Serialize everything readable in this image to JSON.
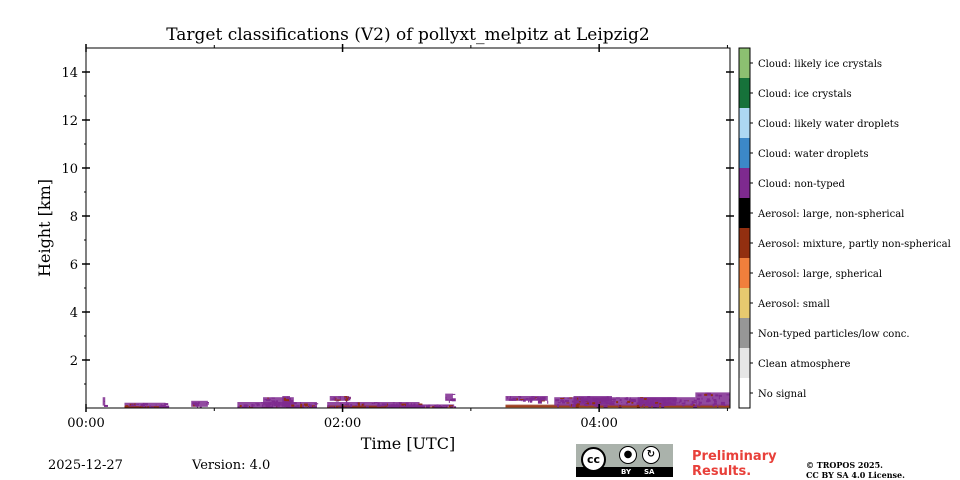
{
  "chart_data": {
    "type": "heatmap",
    "title": "Target classifications (V2) of pollyxt_melpitz at Leipzig2",
    "xlabel": "Time [UTC]",
    "ylabel": "Height [km]",
    "xlim": [
      0,
      5.02
    ],
    "ylim": [
      0,
      15
    ],
    "xticks": [
      0,
      2,
      4
    ],
    "xtick_labels": [
      "00:00",
      "02:00",
      "04:00"
    ],
    "yticks": [
      2,
      4,
      6,
      8,
      10,
      12,
      14
    ],
    "ytick_labels": [
      "2",
      "4",
      "6",
      "8",
      "10",
      "12",
      "14"
    ],
    "classes": [
      {
        "label": "No signal",
        "color": "#ffffff"
      },
      {
        "label": "Clean atmosphere",
        "color": "#e6e6e6"
      },
      {
        "label": "Non-typed particles/low conc.",
        "color": "#969696"
      },
      {
        "label": "Aerosol: small",
        "color": "#e7c96f"
      },
      {
        "label": "Aerosol: large, spherical",
        "color": "#f07f3c"
      },
      {
        "label": "Aerosol: mixture, partly non-spherical",
        "color": "#922f10"
      },
      {
        "label": "Aerosol: large, non-spherical",
        "color": "#000000"
      },
      {
        "label": "Cloud: non-typed",
        "color": "#7e2a8f"
      },
      {
        "label": "Cloud: water droplets",
        "color": "#3c88c8"
      },
      {
        "label": "Cloud: likely water droplets",
        "color": "#add8f3"
      },
      {
        "label": "Cloud: ice crystals",
        "color": "#16723a"
      },
      {
        "label": "Cloud: likely ice crystals",
        "color": "#8cc071"
      }
    ],
    "data_gaps": [
      [
        2.87,
        3.27
      ]
    ],
    "cells": [
      {
        "x0": 0.13,
        "x1": 0.15,
        "h0": 0.1,
        "h1": 0.45,
        "class": 7
      },
      {
        "x0": 0.3,
        "x1": 0.62,
        "h0": 0.0,
        "h1": 0.22,
        "class": 7
      },
      {
        "x0": 0.3,
        "x1": 0.62,
        "h0": 0.0,
        "h1": 0.08,
        "class": 5
      },
      {
        "x0": 0.82,
        "x1": 0.95,
        "h0": 0.05,
        "h1": 0.3,
        "class": 7
      },
      {
        "x0": 1.18,
        "x1": 1.8,
        "h0": 0.0,
        "h1": 0.25,
        "class": 7
      },
      {
        "x0": 1.38,
        "x1": 1.62,
        "h0": 0.1,
        "h1": 0.45,
        "class": 7
      },
      {
        "x0": 1.53,
        "x1": 1.59,
        "h0": 0.05,
        "h1": 0.5,
        "class": 7
      },
      {
        "x0": 1.88,
        "x1": 2.6,
        "h0": 0.0,
        "h1": 0.25,
        "class": 7
      },
      {
        "x0": 1.88,
        "x1": 2.35,
        "h0": 0.0,
        "h1": 0.1,
        "class": 5
      },
      {
        "x0": 2.35,
        "x1": 2.87,
        "h0": 0.05,
        "h1": 0.15,
        "class": 7
      },
      {
        "x0": 2.45,
        "x1": 2.87,
        "h0": 0.0,
        "h1": 0.05,
        "class": 4
      },
      {
        "x0": 1.9,
        "x1": 2.05,
        "h0": 0.3,
        "h1": 0.5,
        "class": 7
      },
      {
        "x0": 2.8,
        "x1": 2.86,
        "h0": 0.3,
        "h1": 0.6,
        "class": 7
      },
      {
        "x0": 3.27,
        "x1": 5.02,
        "h0": 0.0,
        "h1": 0.08,
        "class": 4
      },
      {
        "x0": 3.27,
        "x1": 5.02,
        "h0": 0.04,
        "h1": 0.14,
        "class": 5
      },
      {
        "x0": 3.65,
        "x1": 4.75,
        "h0": 0.1,
        "h1": 0.45,
        "class": 7
      },
      {
        "x0": 3.8,
        "x1": 4.1,
        "h0": 0.15,
        "h1": 0.5,
        "class": 7
      },
      {
        "x0": 4.3,
        "x1": 4.6,
        "h0": 0.1,
        "h1": 0.45,
        "class": 7
      },
      {
        "x0": 4.75,
        "x1": 5.02,
        "h0": 0.1,
        "h1": 0.65,
        "class": 7
      },
      {
        "x0": 3.27,
        "x1": 3.6,
        "h0": 0.3,
        "h1": 0.5,
        "class": 7
      }
    ]
  },
  "footer": {
    "date": "2025-12-27",
    "version": "Version: 4.0",
    "preliminary_line1": "Preliminary",
    "preliminary_line2": "Results.",
    "copyright_line1": "© TROPOS 2025.",
    "copyright_line2": "CC BY SA 4.0 License.",
    "license_badge": {
      "cc": "cc",
      "by": "BY",
      "sa": "SA"
    }
  }
}
